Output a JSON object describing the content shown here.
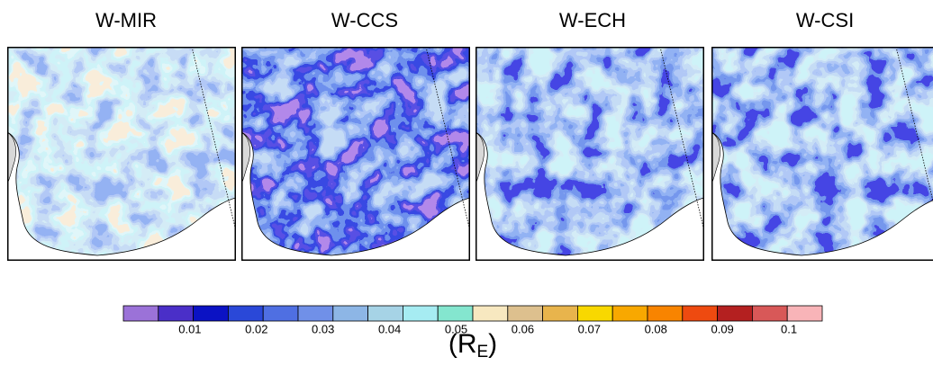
{
  "panels": [
    {
      "title": "W-MIR",
      "shade": 0
    },
    {
      "title": "W-CCS",
      "shade": 2
    },
    {
      "title": "W-ECH",
      "shade": 1
    },
    {
      "title": "W-CSI",
      "shade": 1
    }
  ],
  "colorbar": {
    "colors": [
      "#9b72d8",
      "#4a2fc8",
      "#0b12c4",
      "#2a48d8",
      "#4f6fe2",
      "#7090e8",
      "#8db6e6",
      "#a6d3e6",
      "#a6ecf2",
      "#84e6cf",
      "#f7e8c0",
      "#ddc08e",
      "#e8b44c",
      "#f8d800",
      "#f8a800",
      "#f88400",
      "#ee4a10",
      "#b42020",
      "#d85858",
      "#f8b4b8"
    ],
    "lim": [
      0,
      0.105
    ],
    "ticks": [
      0.01,
      0.02,
      0.03,
      0.04,
      0.05,
      0.06,
      0.07,
      0.08,
      0.09,
      0.1
    ],
    "label_parts": [
      "(R",
      "E",
      ")"
    ]
  }
}
